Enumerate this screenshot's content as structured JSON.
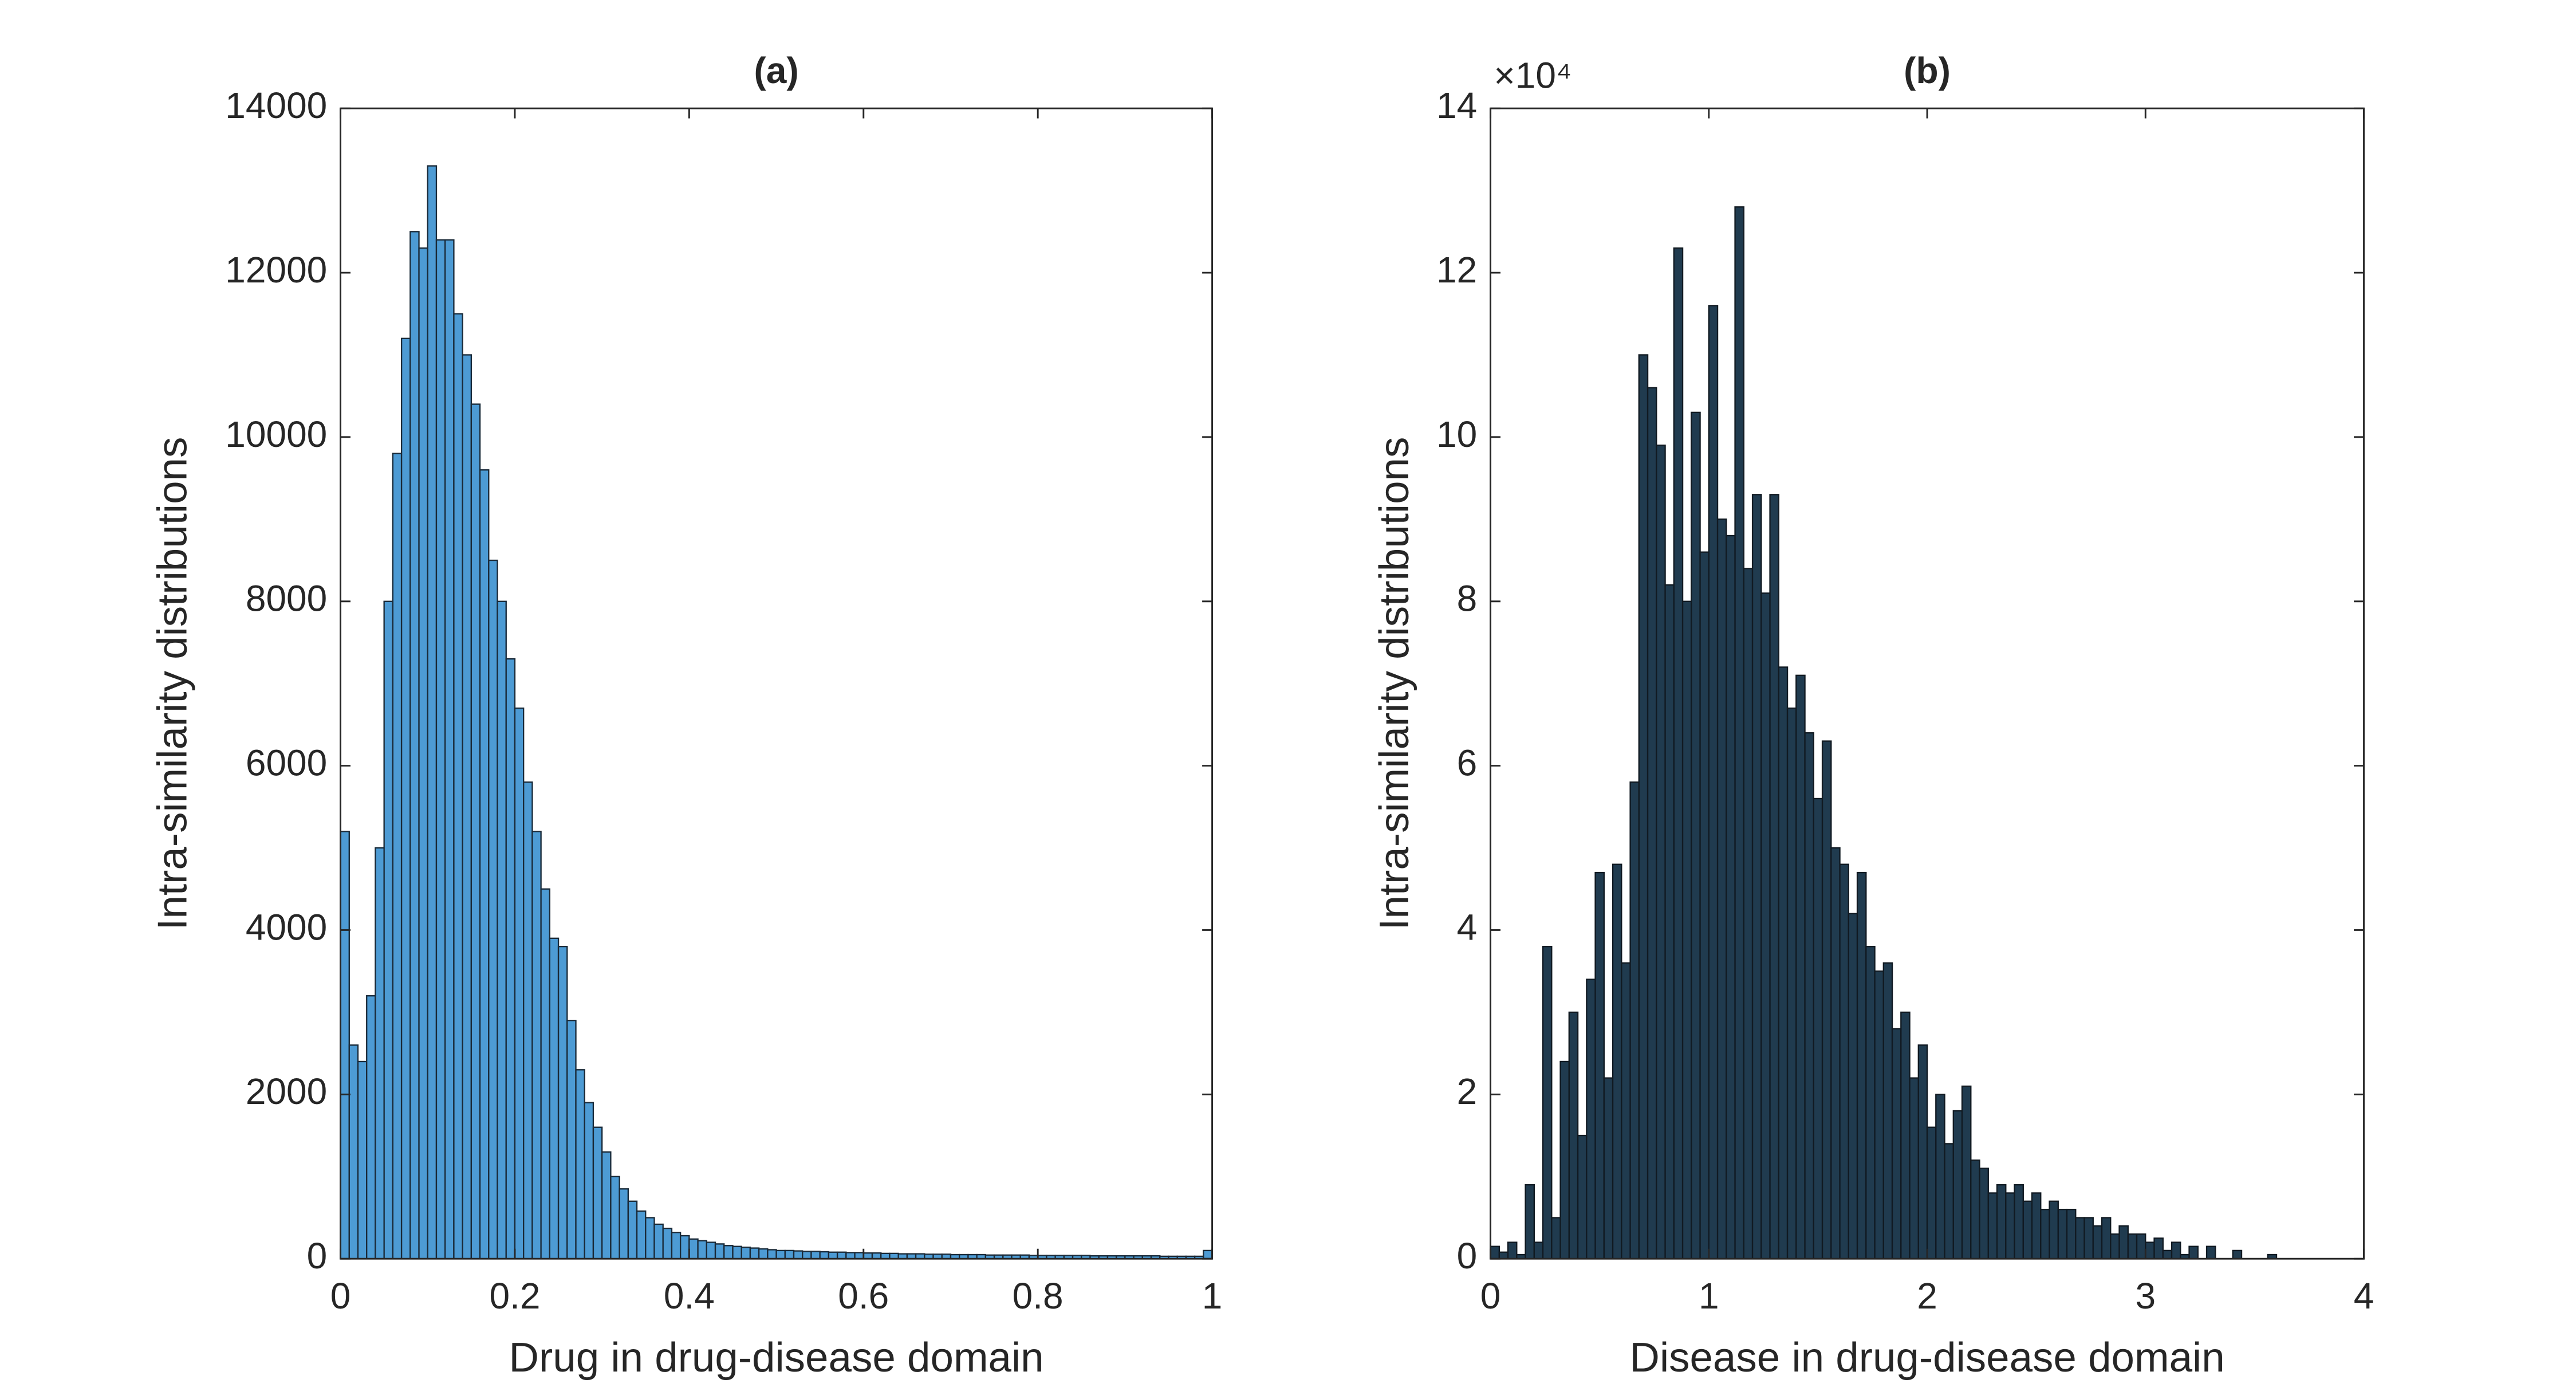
{
  "chart_data": [
    {
      "type": "histogram",
      "title": "(a)",
      "x_label": "Drug in drug-disease domain",
      "y_label": "Intra-similarity distributions",
      "color": "#4d9bd4",
      "edge_color": "#1a2a38",
      "bins": [
        0,
        0.01,
        0.02,
        0.03,
        0.04,
        0.05,
        0.06,
        0.07,
        0.08,
        0.09,
        0.1,
        0.11,
        0.12,
        0.13,
        0.14,
        0.15,
        0.16,
        0.17,
        0.18,
        0.19,
        0.2,
        0.21,
        0.22,
        0.23,
        0.24,
        0.25,
        0.26,
        0.27,
        0.28,
        0.29,
        0.3,
        0.31,
        0.32,
        0.33,
        0.34,
        0.35,
        0.36,
        0.37,
        0.38,
        0.39,
        0.4,
        0.41,
        0.42,
        0.43,
        0.44,
        0.45,
        0.46,
        0.47,
        0.48,
        0.49,
        0.5,
        0.51,
        0.52,
        0.53,
        0.54,
        0.55,
        0.56,
        0.57,
        0.58,
        0.59,
        0.6,
        0.61,
        0.62,
        0.63,
        0.64,
        0.65,
        0.66,
        0.67,
        0.68,
        0.69,
        0.7,
        0.71,
        0.72,
        0.73,
        0.74,
        0.75,
        0.76,
        0.77,
        0.78,
        0.79,
        0.8,
        0.81,
        0.82,
        0.83,
        0.84,
        0.85,
        0.86,
        0.87,
        0.88,
        0.89,
        0.9,
        0.91,
        0.92,
        0.93,
        0.94,
        0.95,
        0.96,
        0.97,
        0.98,
        0.99,
        1
      ],
      "values": [
        5200,
        2600,
        2400,
        3200,
        5000,
        8000,
        9800,
        11200,
        12500,
        12300,
        13300,
        12400,
        12400,
        11500,
        11000,
        10400,
        9600,
        8500,
        8000,
        7300,
        6700,
        5800,
        5200,
        4500,
        3900,
        3800,
        2900,
        2300,
        1900,
        1600,
        1300,
        1000,
        850,
        700,
        580,
        500,
        420,
        370,
        320,
        280,
        240,
        220,
        200,
        180,
        160,
        150,
        140,
        130,
        120,
        110,
        100,
        100,
        95,
        90,
        90,
        85,
        80,
        80,
        75,
        75,
        70,
        70,
        65,
        65,
        60,
        60,
        60,
        55,
        55,
        55,
        50,
        50,
        50,
        50,
        45,
        45,
        45,
        45,
        45,
        40,
        40,
        40,
        40,
        40,
        40,
        40,
        35,
        35,
        35,
        35,
        35,
        35,
        35,
        35,
        30,
        30,
        30,
        30,
        30,
        100
      ],
      "xlim": [
        0,
        1
      ],
      "xticks": [
        0,
        {
          "value": 0.2,
          "label": "0.2"
        },
        {
          "value": 0.4,
          "label": "0.4"
        },
        {
          "value": 0.6,
          "label": "0.6"
        },
        {
          "value": 0.8,
          "label": "0.8"
        },
        1
      ],
      "ylim": [
        0,
        14000
      ],
      "yticks": [
        0,
        2000,
        4000,
        6000,
        8000,
        10000,
        12000,
        14000
      ],
      "grid": false
    },
    {
      "type": "histogram",
      "title": "(b)",
      "x_label": "Disease in drug-disease domain",
      "y_label": "Intra-similarity distributions",
      "y_exponent": "×10⁴",
      "color": "#203b4f",
      "edge_color": "#111a22",
      "bins": [
        0,
        0.04,
        0.08,
        0.12,
        0.16,
        0.2,
        0.24,
        0.28,
        0.32,
        0.36,
        0.4,
        0.44,
        0.48,
        0.52,
        0.56,
        0.6,
        0.64,
        0.68,
        0.72,
        0.76,
        0.8,
        0.84,
        0.88,
        0.92,
        0.96,
        1,
        1.04,
        1.08,
        1.12,
        1.16,
        1.2,
        1.24,
        1.28,
        1.32,
        1.36,
        1.4,
        1.44,
        1.48,
        1.52,
        1.56,
        1.6,
        1.64,
        1.68,
        1.72,
        1.76,
        1.8,
        1.84,
        1.88,
        1.92,
        1.96,
        2,
        2.04,
        2.08,
        2.12,
        2.16,
        2.2,
        2.24,
        2.28,
        2.32,
        2.36,
        2.4,
        2.44,
        2.48,
        2.52,
        2.56,
        2.6,
        2.64,
        2.68,
        2.72,
        2.76,
        2.8,
        2.84,
        2.88,
        2.92,
        2.96,
        3,
        3.04,
        3.08,
        3.12,
        3.16,
        3.2,
        3.24,
        3.28,
        3.32,
        3.36,
        3.4,
        3.44,
        3.48,
        3.52,
        3.56,
        3.6,
        3.64,
        3.68,
        3.72,
        3.76,
        3.8,
        3.84,
        3.88,
        3.92,
        3.96,
        4
      ],
      "values": [
        1500,
        800,
        2000,
        500,
        9000,
        2000,
        38000,
        5000,
        24000,
        30000,
        15000,
        34000,
        47000,
        22000,
        48000,
        36000,
        58000,
        110000,
        106000,
        99000,
        82000,
        123000,
        80000,
        103000,
        86000,
        116000,
        90000,
        88000,
        128000,
        84000,
        93000,
        81000,
        93000,
        72000,
        67000,
        71000,
        64000,
        56000,
        63000,
        50000,
        48000,
        42000,
        47000,
        38000,
        35000,
        36000,
        28000,
        30000,
        22000,
        26000,
        16000,
        20000,
        14000,
        18000,
        21000,
        12000,
        11000,
        8000,
        9000,
        8000,
        9000,
        7000,
        8000,
        6000,
        7000,
        6000,
        6000,
        5000,
        5000,
        4000,
        5000,
        3000,
        4000,
        3000,
        3000,
        2000,
        2500,
        1000,
        2000,
        500,
        1500,
        0,
        1500,
        0,
        0,
        1000,
        0,
        0,
        0,
        500,
        0,
        0,
        0,
        0,
        0,
        0,
        0,
        0,
        0,
        0
      ],
      "xlim": [
        0,
        4
      ],
      "xticks": [
        0,
        1,
        2,
        3,
        4
      ],
      "ylim": [
        0,
        140000
      ],
      "yticks": [
        0,
        {
          "value": 20000,
          "label": "2"
        },
        {
          "value": 40000,
          "label": "4"
        },
        {
          "value": 60000,
          "label": "6"
        },
        {
          "value": 80000,
          "label": "8"
        },
        {
          "value": 100000,
          "label": "10"
        },
        {
          "value": 120000,
          "label": "12"
        },
        {
          "value": 140000,
          "label": "14"
        }
      ],
      "grid": false
    }
  ]
}
